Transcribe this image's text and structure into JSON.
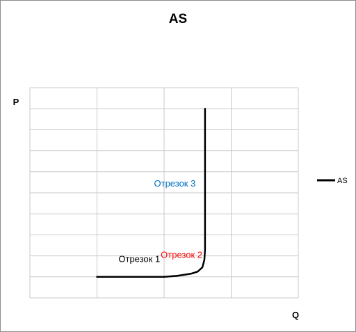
{
  "chart_data": {
    "type": "line",
    "title": "AS",
    "ylabel": "P",
    "xlabel": "Q",
    "xlim": [
      0,
      4
    ],
    "ylim": [
      0,
      10
    ],
    "grid": true,
    "x_gridlines": 4,
    "y_gridlines": 10,
    "legend_position": "right",
    "series": [
      {
        "name": "AS",
        "color": "#000000",
        "points": [
          [
            1.0,
            1.0
          ],
          [
            2.0,
            1.0
          ],
          [
            2.2,
            1.05
          ],
          [
            2.4,
            1.15
          ],
          [
            2.5,
            1.25
          ],
          [
            2.57,
            1.45
          ],
          [
            2.6,
            1.8
          ],
          [
            2.61,
            2.3
          ],
          [
            2.61,
            3.5
          ],
          [
            2.61,
            9.0
          ]
        ]
      }
    ],
    "annotations": [
      {
        "text": "Отрезок 1",
        "color": "#000000",
        "x": 1.63,
        "y": 1.7
      },
      {
        "text": "Отрезок 2",
        "color": "#ff0000",
        "x": 2.26,
        "y": 1.9
      },
      {
        "text": "Отрезок 3",
        "color": "#0070c0",
        "x": 2.16,
        "y": 5.3
      }
    ]
  }
}
